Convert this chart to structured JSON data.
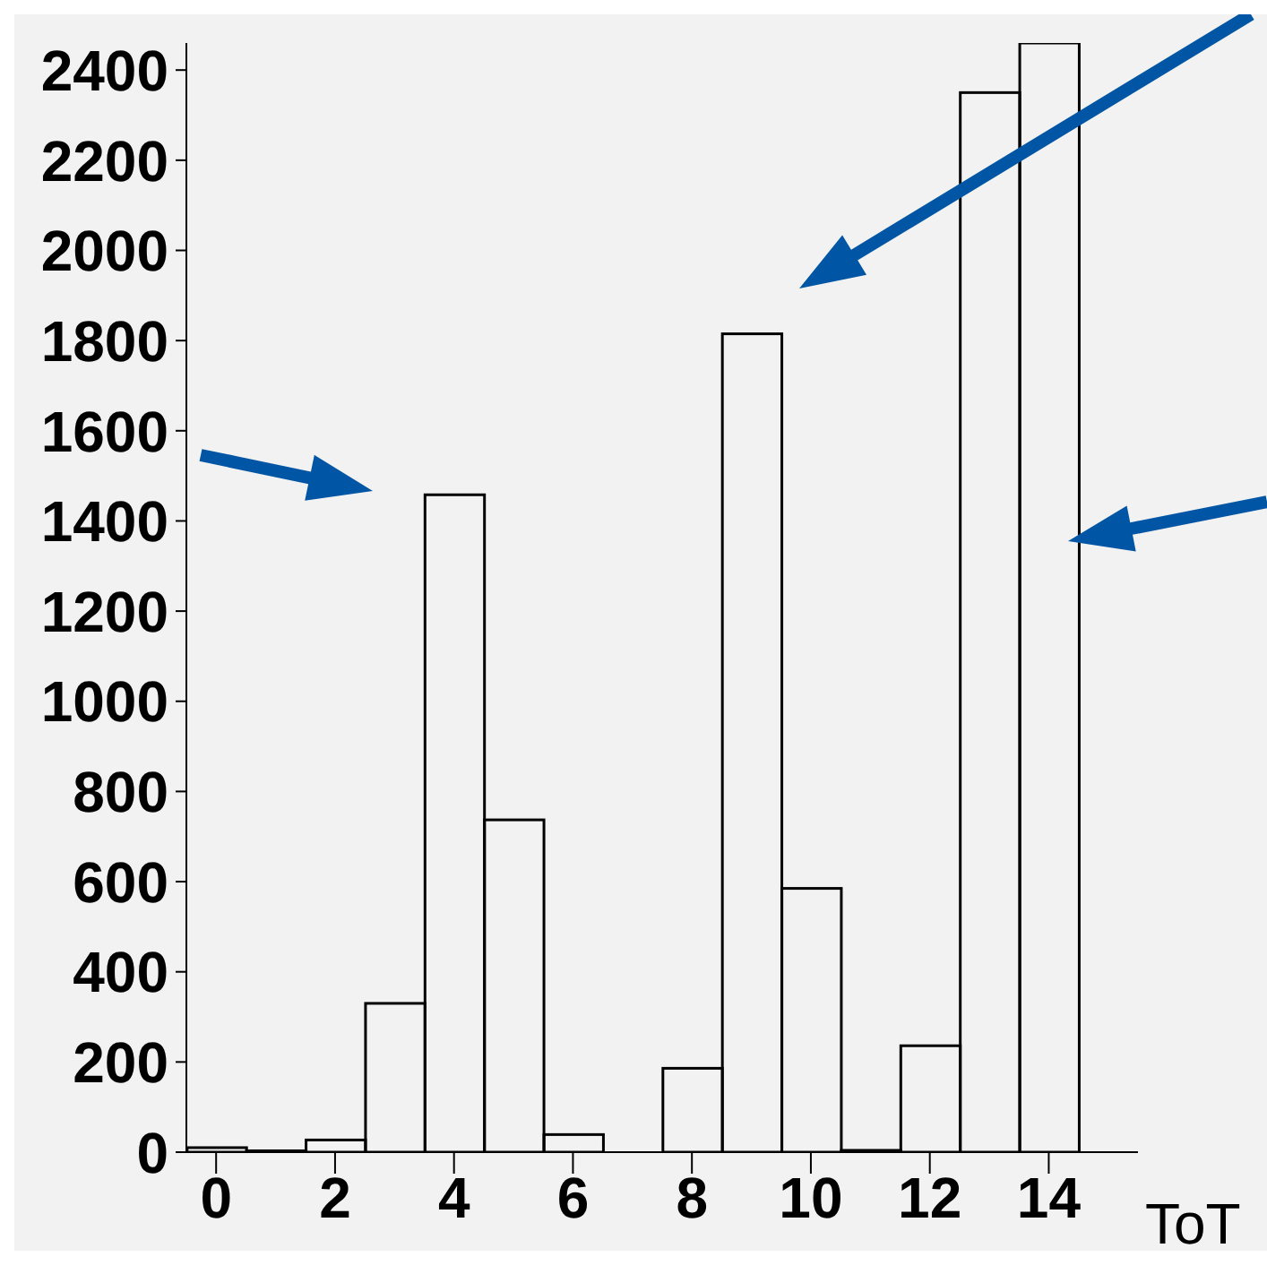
{
  "chart_data": {
    "type": "histogram",
    "xlabel": "ToT",
    "bins": [
      -0.5,
      0.5,
      1.5,
      2.5,
      3.5,
      4.5,
      5.5,
      6.5,
      7.5,
      8.5,
      9.5,
      10.5,
      11.5,
      12.5,
      13.5,
      14.5,
      15.5
    ],
    "values": [
      10,
      3,
      27,
      330,
      1458,
      737,
      39,
      0,
      186,
      1815,
      585,
      4,
      236,
      2350,
      2460,
      0
    ],
    "color": "#000000",
    "xlim": [
      -0.5,
      15.5
    ],
    "xticks": [
      0,
      2,
      4,
      6,
      8,
      10,
      12,
      14
    ],
    "ylim": [
      0,
      2460
    ],
    "yticks": [
      0,
      200,
      400,
      600,
      800,
      1000,
      1200,
      1400,
      1600,
      1800,
      2000,
      2200,
      2400
    ],
    "grid": false,
    "legend": false
  }
}
